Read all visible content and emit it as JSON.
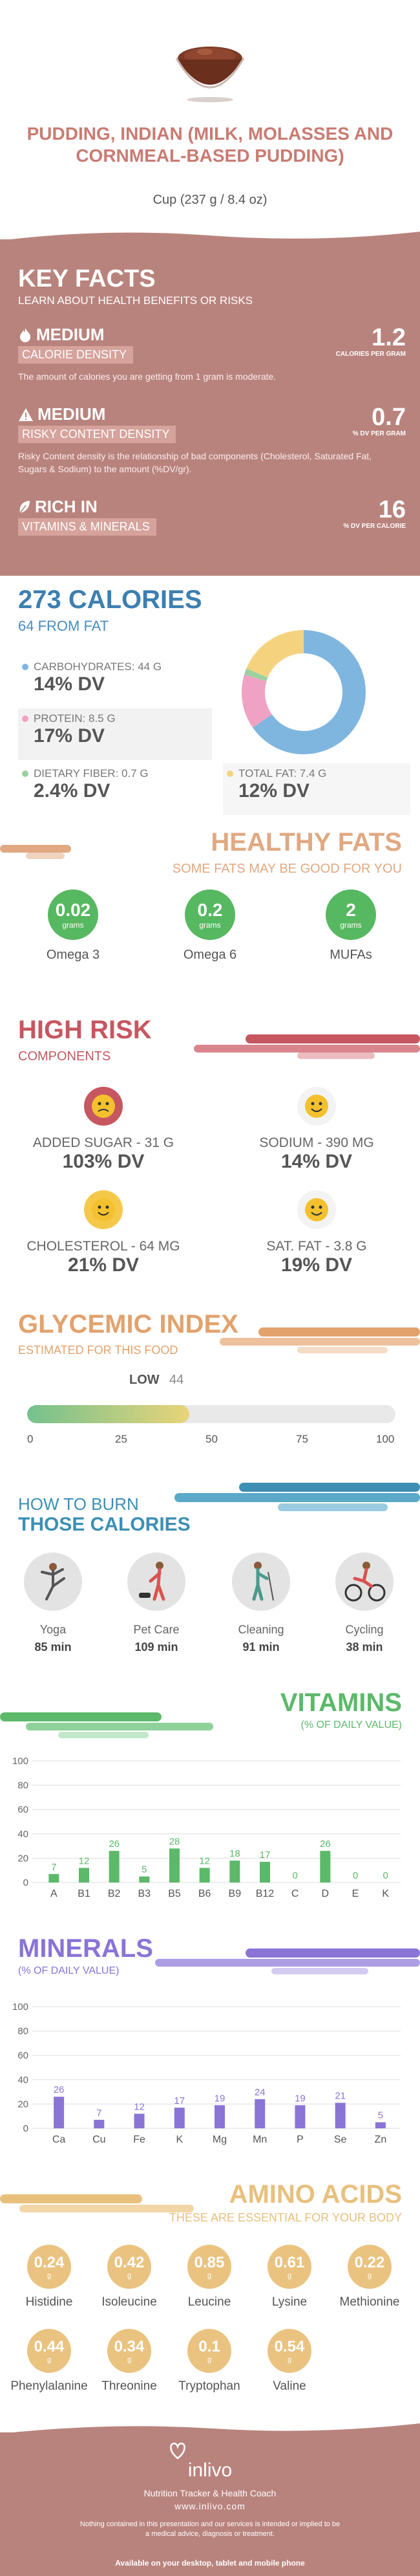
{
  "header": {
    "title": "PUDDING, INDIAN (MILK, MOLASSES AND CORNMEAL-BASED PUDDING)",
    "serving": "Cup (237 g / 8.4 oz)"
  },
  "key_facts": {
    "title": "KEY FACTS",
    "subtitle": "LEARN ABOUT HEALTH BENEFITS OR RISKS",
    "items": [
      {
        "level": "MEDIUM",
        "band": "CALORIE DENSITY",
        "value": "1.2",
        "unit": "CALORIES PER GRAM",
        "desc": "The amount of calories you are getting from 1 gram is moderate.",
        "icon": "flame-icon"
      },
      {
        "level": "MEDIUM",
        "band": "RISKY CONTENT DENSITY",
        "value": "0.7",
        "unit": "% DV PER GRAM",
        "desc": "Risky Content density is the relationship of bad components (Cholesterol, Saturated Fat, Sugars & Sodium) to the amount (%DV/gr).",
        "icon": "warning-icon"
      },
      {
        "level": "RICH IN",
        "band": "VITAMINS & MINERALS",
        "value": "16",
        "unit": "% DV PER CALORIE",
        "desc": "",
        "icon": "leaf-icon"
      }
    ]
  },
  "calories": {
    "title": "273 CALORIES",
    "subtitle": "64 FROM FAT",
    "macros": [
      {
        "label": "CARBOHYDRATES: 44 g",
        "dv": "14% DV",
        "color": "#7fb6e0"
      },
      {
        "label": "PROTEIN: 8.5 g",
        "dv": "17% DV",
        "color": "#f0a2c4"
      },
      {
        "label": "DIETARY FIBER: 0.7 g",
        "dv": "2.4% DV",
        "color": "#9bd1a0"
      },
      {
        "label": "TOTAL FAT: 7.4 g",
        "dv": "12% DV",
        "color": "#f5d37e"
      }
    ]
  },
  "healthy_fats": {
    "title": "HEALTHY FATS",
    "subtitle": "SOME FATS MAY BE GOOD FOR YOU",
    "items": [
      {
        "value": "0.02",
        "unit": "grams",
        "name": "Omega 3"
      },
      {
        "value": "0.2",
        "unit": "grams",
        "name": "Omega 6"
      },
      {
        "value": "2",
        "unit": "grams",
        "name": "MUFAs"
      }
    ]
  },
  "high_risk": {
    "title": "HIGH RISK",
    "subtitle": "COMPONENTS",
    "items": [
      {
        "label": "ADDED SUGAR - 31 g",
        "dv": "103% DV",
        "mood": "bad"
      },
      {
        "label": "SODIUM - 390 mg",
        "dv": "14% DV",
        "mood": "good"
      },
      {
        "label": "CHOLESTEROL - 64 mg",
        "dv": "21% DV",
        "mood": "good"
      },
      {
        "label": "SAT. FAT - 3.8 g",
        "dv": "19% DV",
        "mood": "good"
      }
    ]
  },
  "glycemic": {
    "title": "GLYCEMIC INDEX",
    "subtitle": "ESTIMATED FOR THIS FOOD",
    "level": "LOW",
    "value": "44",
    "fraction": 0.44,
    "ticks": [
      "0",
      "25",
      "50",
      "75",
      "100"
    ]
  },
  "burn": {
    "title_line1": "HOW TO BURN",
    "title_line2": "THOSE CALORIES",
    "activities": [
      {
        "name": "Yoga",
        "minutes": "85 min"
      },
      {
        "name": "Pet Care",
        "minutes": "109 min"
      },
      {
        "name": "Cleaning",
        "minutes": "91 min"
      },
      {
        "name": "Cycling",
        "minutes": "38 min"
      }
    ]
  },
  "vitamins": {
    "title": "VITAMINS",
    "subtitle": "(% OF DAILY VALUE)"
  },
  "minerals": {
    "title": "MINERALS",
    "subtitle": "(% OF DAILY VALUE)"
  },
  "chart_data": [
    {
      "type": "bar",
      "categories": [
        "A",
        "B1",
        "B2",
        "B3",
        "B5",
        "B6",
        "B9",
        "B12",
        "C",
        "D",
        "E",
        "K"
      ],
      "values": [
        7,
        12,
        26,
        5,
        28,
        12,
        18,
        17,
        0,
        26,
        0,
        0
      ],
      "ylim": [
        0,
        100
      ],
      "yticks": [
        "0",
        "20",
        "40",
        "60",
        "80",
        "100"
      ],
      "color": "#5cb96a",
      "grid": true
    },
    {
      "type": "bar",
      "categories": [
        "Ca",
        "Cu",
        "Fe",
        "K",
        "Mg",
        "Mn",
        "P",
        "Se",
        "Zn"
      ],
      "values": [
        26,
        7,
        12,
        17,
        19,
        24,
        19,
        21,
        5
      ],
      "ylim": [
        0,
        100
      ],
      "yticks": [
        "0",
        "20",
        "40",
        "60",
        "80",
        "100"
      ],
      "color": "#8a74d6",
      "grid": true
    }
  ],
  "amino": {
    "title": "AMINO ACIDS",
    "subtitle": "THESE ARE ESSENTIAL FOR YOUR BODY",
    "items": [
      {
        "value": "0.24",
        "unit": "g",
        "name": "Histidine"
      },
      {
        "value": "0.42",
        "unit": "g",
        "name": "Isoleucine"
      },
      {
        "value": "0.85",
        "unit": "g",
        "name": "Leucine"
      },
      {
        "value": "0.61",
        "unit": "g",
        "name": "Lysine"
      },
      {
        "value": "0.22",
        "unit": "g",
        "name": "Methionine"
      },
      {
        "value": "0.44",
        "unit": "g",
        "name": "Phenylalanine"
      },
      {
        "value": "0.34",
        "unit": "g",
        "name": "Threonine"
      },
      {
        "value": "0.1",
        "unit": "g",
        "name": "Tryptophan"
      },
      {
        "value": "0.54",
        "unit": "g",
        "name": "Valine"
      }
    ]
  },
  "footer": {
    "brand": "inlivo",
    "tagline": "Nutrition Tracker & Health Coach",
    "url": "www.inlivo.com",
    "disclaimer": "Nothing contained in this presentation and our services is intended or implied to be a medical advice, diagnosis or treatment.",
    "available": "Available on your desktop, tablet and mobile phone"
  }
}
